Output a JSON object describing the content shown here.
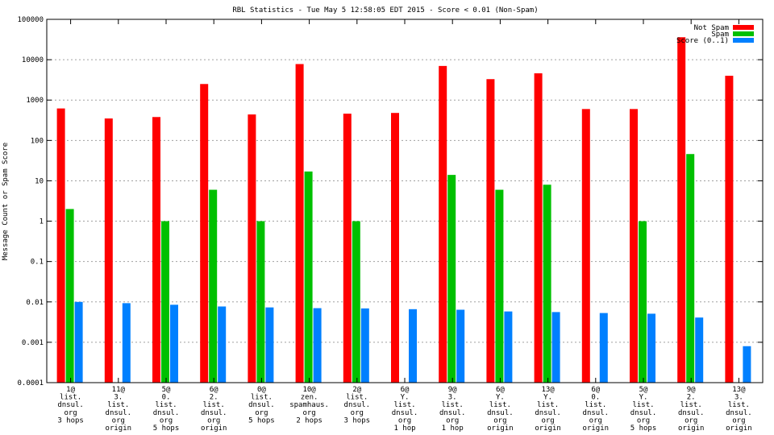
{
  "chart_data": {
    "type": "bar",
    "title": "RBL Statistics - Tue May  5 12:58:05 EDT 2015 - Score < 0.01 (Non-Spam)",
    "xlabel": "",
    "ylabel": "Message Count or Spam Score",
    "y_scale": "log",
    "ylim": [
      0.0001,
      100000
    ],
    "y_ticks": [
      "0.0001",
      "0.001",
      "0.01",
      "0.1",
      "1",
      "10",
      "100",
      "1000",
      "10000",
      "100000"
    ],
    "grid": true,
    "legend_position": "top-right",
    "categories": [
      [
        "1@",
        "list.",
        "dnsul.",
        "org",
        "3 hops"
      ],
      [
        "11@",
        "3.",
        "list.",
        "dnsul.",
        "org",
        "origin"
      ],
      [
        "5@",
        "0.",
        "list.",
        "dnsul.",
        "org",
        "5 hops"
      ],
      [
        "6@",
        "2.",
        "list.",
        "dnsul.",
        "org",
        "origin"
      ],
      [
        "0@",
        "list.",
        "dnsul.",
        "org",
        "5 hops"
      ],
      [
        "10@",
        "zen.",
        "spamhaus.",
        "org",
        "2 hops"
      ],
      [
        "2@",
        "list.",
        "dnsul.",
        "org",
        "3 hops"
      ],
      [
        "6@",
        "Y.",
        "list.",
        "dnsul.",
        "org",
        "1 hop"
      ],
      [
        "9@",
        "3.",
        "list.",
        "dnsul.",
        "org",
        "1 hop"
      ],
      [
        "6@",
        "Y.",
        "list.",
        "dnsul.",
        "org",
        "origin"
      ],
      [
        "13@",
        "Y.",
        "list.",
        "dnsul.",
        "org",
        "origin"
      ],
      [
        "6@",
        "0.",
        "list.",
        "dnsul.",
        "org",
        "origin"
      ],
      [
        "5@",
        "Y.",
        "list.",
        "dnsul.",
        "org",
        "5 hops"
      ],
      [
        "9@",
        "2.",
        "list.",
        "dnsul.",
        "org",
        "origin"
      ],
      [
        "13@",
        "3.",
        "list.",
        "dnsul.",
        "org",
        "origin"
      ]
    ],
    "series": [
      {
        "name": "Not Spam",
        "color": "#ff0000",
        "values": [
          620,
          350,
          380,
          2500,
          440,
          7800,
          460,
          480,
          7000,
          3300,
          4600,
          600,
          600,
          36000,
          4000
        ]
      },
      {
        "name": "Spam",
        "color": "#00c000",
        "values": [
          2,
          null,
          1,
          6,
          1,
          17,
          1,
          null,
          14,
          6,
          8,
          null,
          1,
          46,
          null
        ]
      },
      {
        "name": "Score (0..1)",
        "color": "#0080ff",
        "values": [
          0.01,
          0.0093,
          0.0085,
          0.0077,
          0.0073,
          0.007,
          0.0069,
          0.0066,
          0.0064,
          0.0058,
          0.0056,
          0.0053,
          0.0051,
          0.0041,
          0.0008
        ]
      }
    ]
  }
}
